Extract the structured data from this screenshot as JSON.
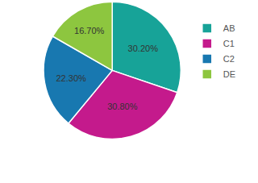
{
  "chart_data": {
    "type": "pie",
    "categories": [
      "AB",
      "C1",
      "C2",
      "DE"
    ],
    "values": [
      30.2,
      30.8,
      22.3,
      16.7
    ],
    "value_labels": [
      "30.20%",
      "30.80%",
      "22.30%",
      "16.70%"
    ],
    "colors": [
      "#17a398",
      "#c41a8c",
      "#1878b0",
      "#8dc63f"
    ],
    "data_labels": true,
    "legend": "right"
  }
}
